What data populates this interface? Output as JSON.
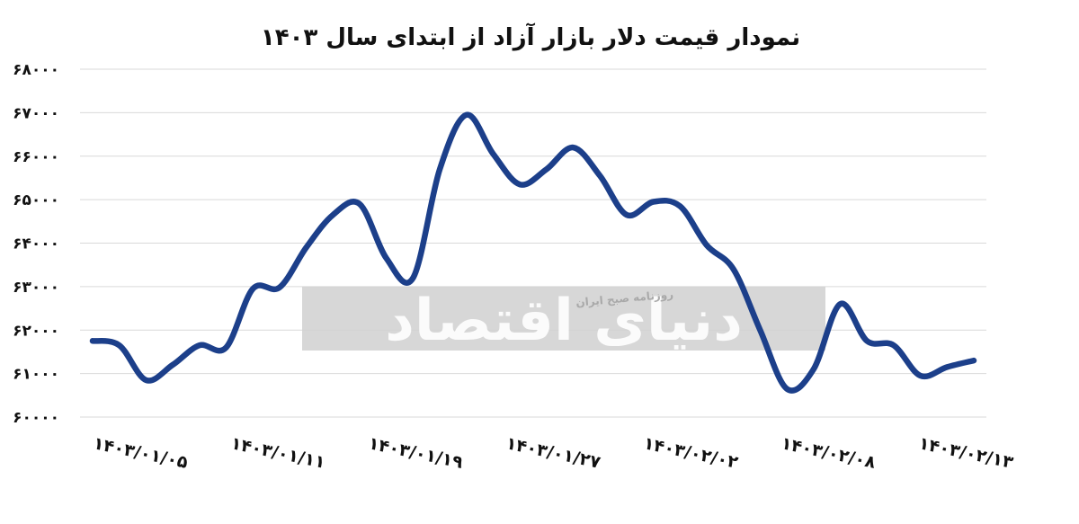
{
  "chart_data": {
    "type": "line",
    "title": "نمودار قیمت دلار بازار آزاد از ابتدای سال ۱۴۰۳",
    "xlabel": "",
    "ylabel": "",
    "ylim": [
      60000,
      68000
    ],
    "yticks": [
      60000,
      61000,
      62000,
      63000,
      64000,
      65000,
      66000,
      67000,
      68000
    ],
    "ytick_labels": [
      "۶۰۰۰۰",
      "۶۱۰۰۰",
      "۶۲۰۰۰",
      "۶۳۰۰۰",
      "۶۴۰۰۰",
      "۶۵۰۰۰",
      "۶۶۰۰۰",
      "۶۷۰۰۰",
      "۶۸۰۰۰"
    ],
    "x_tick_labels": [
      "۱۴۰۳/۰۱/۰۵",
      "۱۴۰۳/۰۱/۱۱",
      "۱۴۰۳/۰۱/۱۹",
      "۱۴۰۳/۰۱/۲۷",
      "۱۴۰۳/۰۲/۰۲",
      "۱۴۰۳/۰۲/۰۸",
      "۱۴۰۳/۰۲/۱۳"
    ],
    "grid": true,
    "legend": "none",
    "series": [
      {
        "color": "#1c3f8a",
        "values": [
          61750,
          61650,
          60850,
          61200,
          61650,
          61600,
          62950,
          62980,
          63900,
          64650,
          64900,
          63650,
          63200,
          65700,
          66950,
          66050,
          65350,
          65700,
          66200,
          65550,
          64650,
          64950,
          64850,
          63950,
          63400,
          62000,
          60650,
          61100,
          62600,
          61750,
          61650,
          60950,
          61150,
          61300
        ]
      }
    ]
  },
  "watermark": {
    "main_text": "دنیای اقتصاد",
    "sub_text": "روزنامه صبح ایران"
  }
}
